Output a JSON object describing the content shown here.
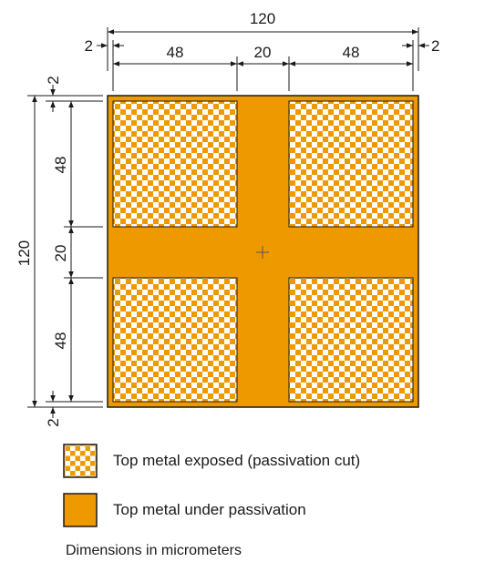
{
  "colors": {
    "metal": "#EE9900",
    "checker_light": "#FFFFFF",
    "outline": "#1a1a1a",
    "line": "#1a1a1a"
  },
  "icons": {
    "center_mark": "crosshair-icon"
  },
  "dimensions": {
    "top_total": "120",
    "top_margin_left": "2",
    "top_margin_right": "2",
    "top_pad_left": "48",
    "top_gap": "20",
    "top_pad_right": "48",
    "left_total": "120",
    "left_margin_top": "2",
    "left_pad_top": "48",
    "left_gap": "20",
    "left_pad_bottom": "48",
    "left_margin_bottom": "2"
  },
  "legend": {
    "exposed_label": "Top metal exposed (passivation cut)",
    "under_label": "Top metal under passivation"
  },
  "note": "Dimensions in micrometers"
}
